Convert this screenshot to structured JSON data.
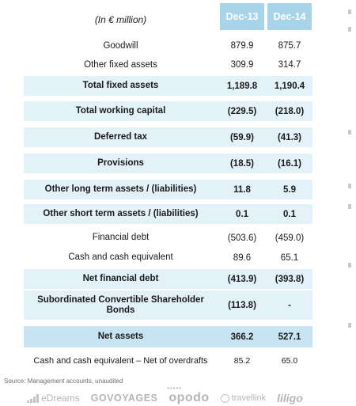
{
  "header": {
    "unit": "(In € million)",
    "col1": "Dec-13",
    "col2": "Dec-14"
  },
  "rows": [
    {
      "label": "Goodwill",
      "v1": "879.9",
      "v2": "875.7"
    },
    {
      "label": "Other fixed assets",
      "v1": "309.9",
      "v2": "314.7"
    },
    {
      "label": "Total fixed assets",
      "v1": "1,189.8",
      "v2": "1,190.4"
    },
    {
      "label": "Total working capital",
      "v1": "(229.5)",
      "v2": "(218.0)"
    },
    {
      "label": "Deferred tax",
      "v1": "(59.9)",
      "v2": "(41.3)"
    },
    {
      "label": "Provisions",
      "v1": "(18.5)",
      "v2": "(16.1)"
    },
    {
      "label": "Other long term assets / (liabilities)",
      "v1": "11.8",
      "v2": "5.9"
    },
    {
      "label": "Other short term assets / (liabilities)",
      "v1": "0.1",
      "v2": "0.1"
    },
    {
      "label": "Financial debt",
      "v1": "(503.6)",
      "v2": "(459.0)"
    },
    {
      "label": "Cash and cash equivalent",
      "v1": "89.6",
      "v2": "65.1"
    },
    {
      "label": "Net financial debt",
      "v1": "(413.9)",
      "v2": "(393.8)"
    },
    {
      "label": "Subordinated Convertible Shareholder Bonds",
      "v1": "(113.8)",
      "v2": "-"
    },
    {
      "label": "Net assets",
      "v1": "366.2",
      "v2": "527.1"
    },
    {
      "label": "Cash and cash equivalent – Net of overdrafts",
      "v1": "85.2",
      "v2": "65.0"
    }
  ],
  "source": "Source: Management accounts, unaudited",
  "logos": {
    "edreams": "eDreams",
    "govoyages": "GOVOYAGES",
    "opodo": "opodo",
    "opodo_stars": "*****",
    "travellink": "travellink",
    "liligo": "liligo"
  },
  "colors": {
    "header_fill": "#a8d4ea",
    "row_shade": "#e3f1f9",
    "total_shade": "#c8e4f2"
  }
}
